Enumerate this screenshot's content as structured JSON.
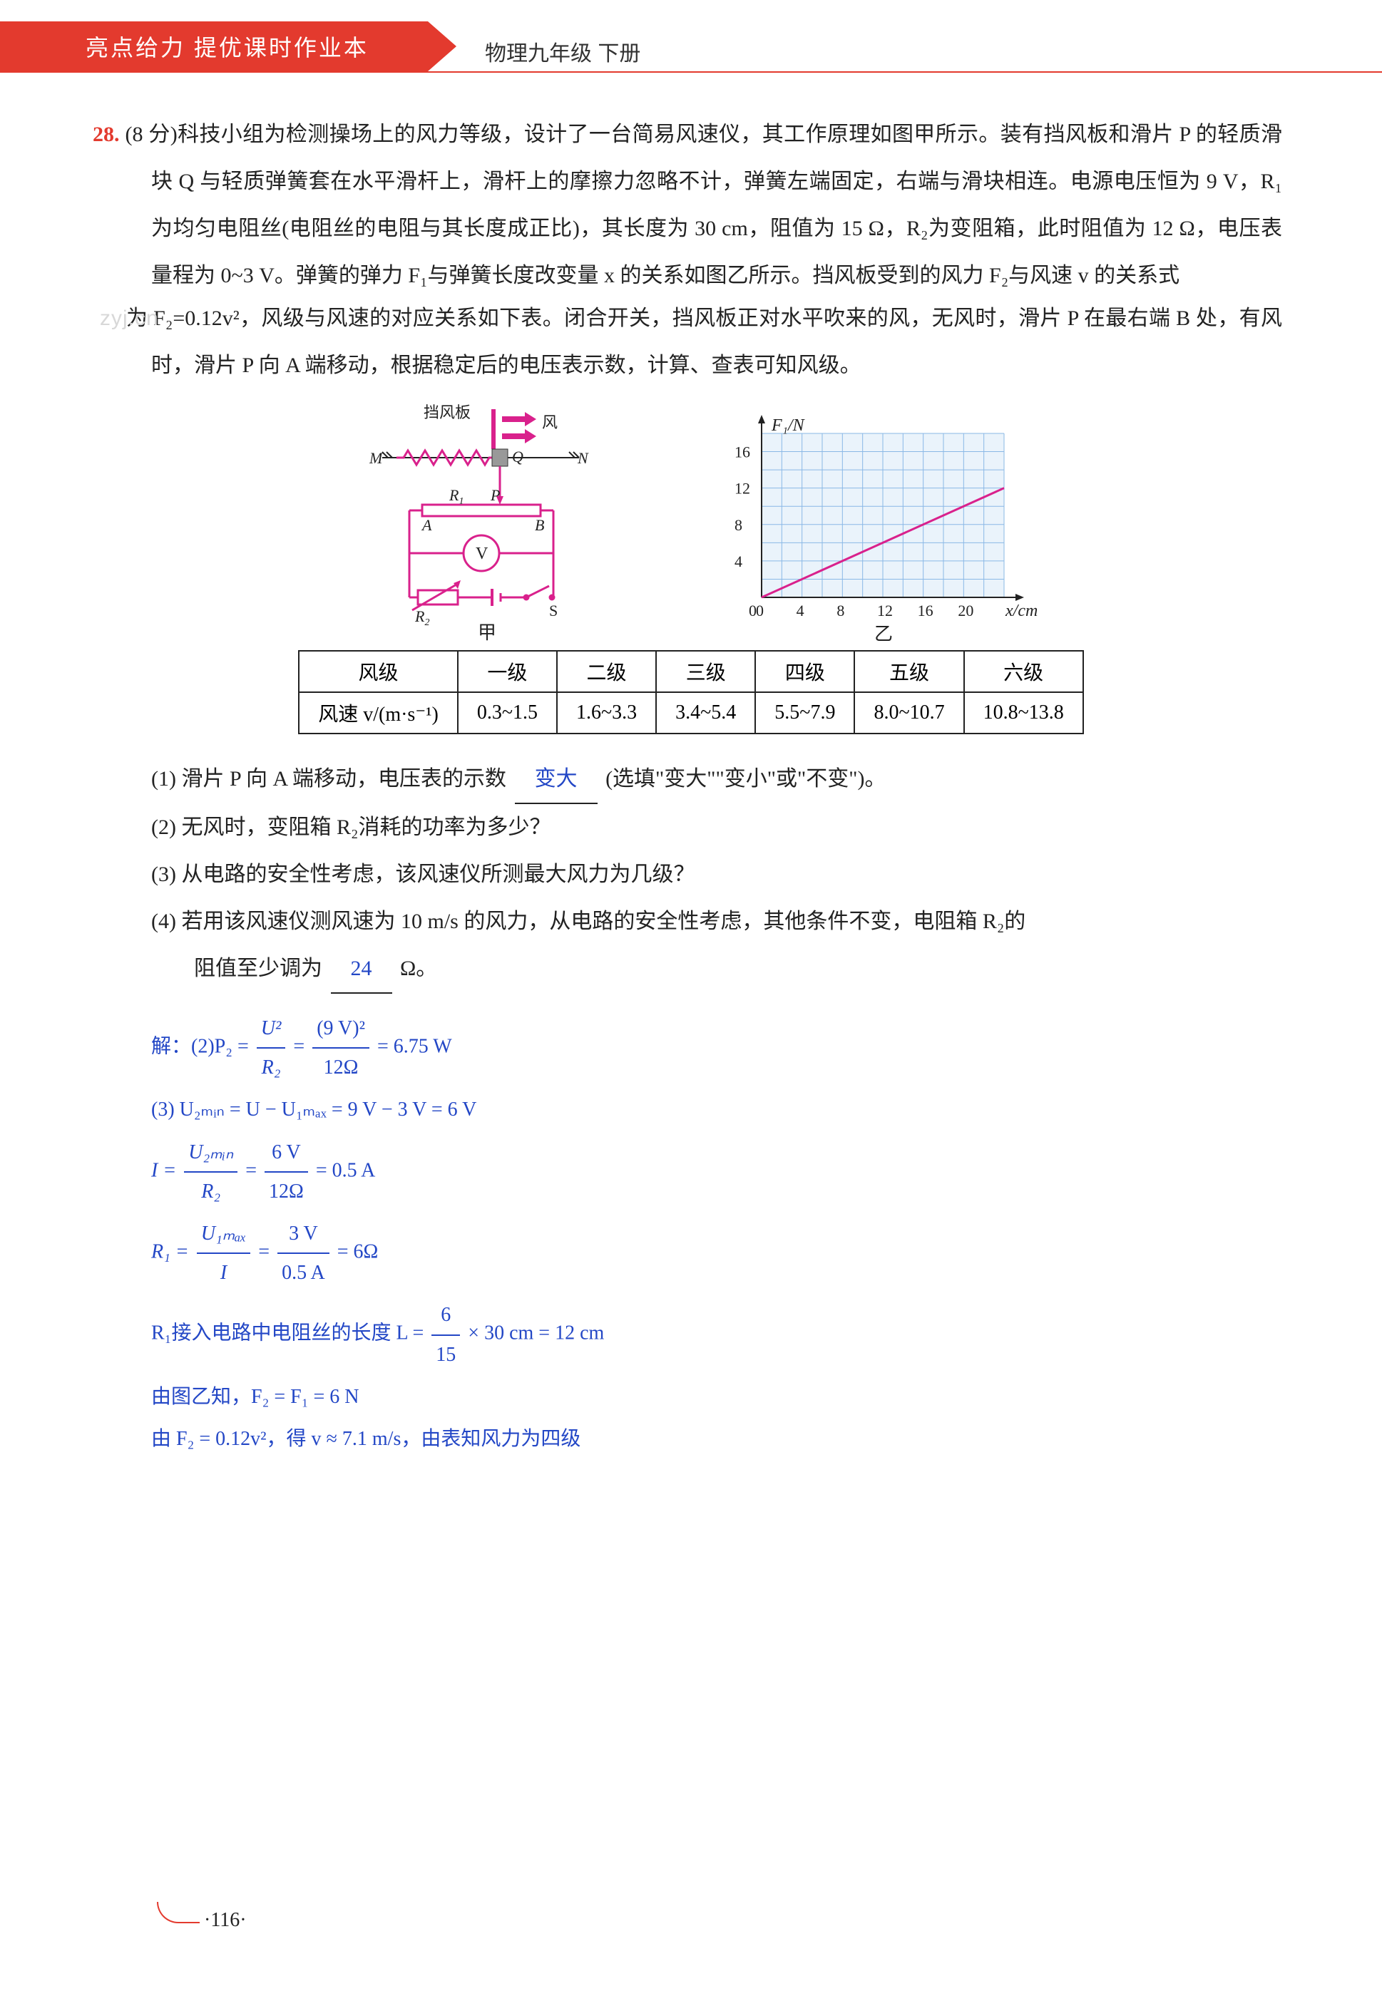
{
  "header": {
    "series": "亮点给力  提优课时作业本",
    "book": "物理九年级 下册"
  },
  "watermark": "zyj.cn",
  "problem": {
    "number": "28",
    "points_label": "(8 分)",
    "text_part1": "科技小组为检测操场上的风力等级，设计了一台简易风速仪，其工作原理如图甲所示。装有挡风板和滑片 P 的轻质滑块 Q 与轻质弹簧套在水平滑杆上，滑杆上的摩擦力忽略不计，弹簧左端固定，右端与滑块相连。电源电压恒为 9 V，R₁为均匀电阻丝(电阻丝的电阻与其长度成正比)，其长度为 30 cm，阻值为 15 Ω，R₂为变阻箱，此时阻值为 12 Ω，电压表量程为 0~3 V。弹簧的弹力 F₁与弹簧长度改变量 x 的关系如图乙所示。挡风板受到的风力 F₂与风速 v 的关系式",
    "text_part2_prefix": "为 F₂=0.12v²",
    "text_part2_rest": "，风级与风速的对应关系如下表。闭合开关，挡风板正对水平吹来的风，无风时，滑片 P 在最右端 B 处，有风时，滑片 P 向 A 端移动，根据稳定后的电压表示数，计算、查表可知风级。"
  },
  "circuit": {
    "labels": {
      "wind_plate": "挡风板",
      "wind": "风",
      "M": "M",
      "N": "N",
      "Q": "Q",
      "R1": "R₁",
      "P": "P",
      "A": "A",
      "B": "B",
      "V": "V",
      "R2": "R₂",
      "S": "S",
      "caption": "甲"
    },
    "colors": {
      "wire": "#d9218c",
      "text": "#222",
      "block": "#888",
      "spring": "#d9218c",
      "bg": "#fff"
    }
  },
  "chart": {
    "caption": "乙",
    "ylabel": "F₁/N",
    "xlabel": "x/cm",
    "xlim": [
      0,
      24
    ],
    "ylim": [
      0,
      18
    ],
    "xticks": [
      0,
      4,
      8,
      12,
      16,
      20
    ],
    "yticks": [
      4,
      8,
      12,
      16
    ],
    "line_pts": [
      [
        0,
        0
      ],
      [
        24,
        12
      ]
    ],
    "colors": {
      "axis": "#222",
      "grid": "#8ab8e6",
      "line": "#d9218c",
      "text": "#222",
      "grid_bg": "#eaf3fb"
    }
  },
  "table": {
    "head": [
      "风级",
      "一级",
      "二级",
      "三级",
      "四级",
      "五级",
      "六级"
    ],
    "row_label": "风速 v/(m·s⁻¹)",
    "row": [
      "0.3~1.5",
      "1.6~3.3",
      "3.4~5.4",
      "5.5~7.9",
      "8.0~10.7",
      "10.8~13.8"
    ]
  },
  "subq": {
    "q1_a": "(1) 滑片 P 向 A 端移动，电压表的示数",
    "q1_ans": "变大",
    "q1_b": "(选填\"变大\"\"变小\"或\"不变\")。",
    "q2": "(2) 无风时，变阻箱 R₂消耗的功率为多少？",
    "q3": "(3) 从电路的安全性考虑，该风速仪所测最大风力为几级？",
    "q4_a": "(4) 若用该风速仪测风速为 10 m/s 的风力，从电路的安全性考虑，其他条件不变，电阻箱 R₂的",
    "q4_b": "阻值至少调为",
    "q4_ans": "24",
    "q4_c": "Ω。"
  },
  "solution": {
    "l1_a": "解：(2)P₂ = ",
    "l1_f1": {
      "num": "U²",
      "den": "R₂"
    },
    "l1_b": " = ",
    "l1_f2": {
      "num": "(9 V)²",
      "den": "12Ω"
    },
    "l1_c": " = 6.75 W",
    "l2": "(3) U₂ₘᵢₙ = U − U₁ₘₐₓ = 9 V − 3 V = 6 V",
    "l3_a": "I = ",
    "l3_f1": {
      "num": "U₂ₘᵢₙ",
      "den": "R₂"
    },
    "l3_b": " = ",
    "l3_f2": {
      "num": "6 V",
      "den": "12Ω"
    },
    "l3_c": " = 0.5 A",
    "l4_a": "R₁ = ",
    "l4_f1": {
      "num": "U₁ₘₐₓ",
      "den": "I"
    },
    "l4_b": " = ",
    "l4_f2": {
      "num": "3 V",
      "den": "0.5 A"
    },
    "l4_c": " = 6Ω",
    "l5_a": "R₁接入电路中电阻丝的长度 L = ",
    "l5_f": {
      "num": "6",
      "den": "15"
    },
    "l5_b": " × 30 cm = 12 cm",
    "l6": "由图乙知，F₂ = F₁ = 6 N",
    "l7": "由 F₂ = 0.12v²，得 v ≈ 7.1 m/s，由表知风力为四级"
  },
  "footer": {
    "page": "·116·"
  }
}
